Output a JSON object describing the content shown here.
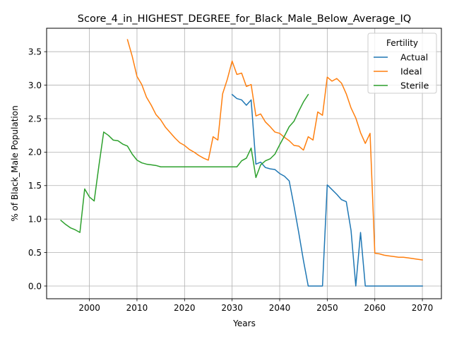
{
  "chart_data": {
    "type": "line",
    "title": "Score_4_in_HIGHEST_DEGREE_for_Black_Male_Below_Average_IQ",
    "xlabel": "Years",
    "ylabel": "% of Black_Male Population",
    "xlim": [
      1991,
      2074
    ],
    "ylim": [
      -0.19,
      3.85
    ],
    "xticks": [
      2000,
      2010,
      2020,
      2030,
      2040,
      2050,
      2060,
      2070
    ],
    "yticks": [
      0.0,
      0.5,
      1.0,
      1.5,
      2.0,
      2.5,
      3.0,
      3.5
    ],
    "xtick_labels": [
      "2000",
      "2010",
      "2020",
      "2030",
      "2040",
      "2050",
      "2060",
      "2070"
    ],
    "ytick_labels": [
      "0.0",
      "0.5",
      "1.0",
      "1.5",
      "2.0",
      "2.5",
      "3.0",
      "3.5"
    ],
    "grid": true,
    "legend": {
      "title": "Fertility",
      "placement": "top-right"
    },
    "series": [
      {
        "name": "Actual",
        "color": "#1f77b4",
        "x": [
          2030,
          2031,
          2032,
          2033,
          2034,
          2035,
          2036,
          2037,
          2038,
          2039,
          2040,
          2041,
          2042,
          2043,
          2044,
          2045,
          2046,
          2047,
          2048,
          2049,
          2050,
          2051,
          2052,
          2053,
          2054,
          2055,
          2056,
          2057,
          2058,
          2059,
          2060,
          2061,
          2062,
          2063,
          2064,
          2065,
          2066,
          2067,
          2068,
          2069,
          2070
        ],
        "y": [
          2.86,
          2.8,
          2.78,
          2.7,
          2.78,
          1.82,
          1.85,
          1.77,
          1.75,
          1.74,
          1.68,
          1.64,
          1.57,
          1.2,
          0.8,
          0.38,
          0.0,
          0.0,
          0.0,
          0.0,
          1.51,
          1.44,
          1.37,
          1.29,
          1.26,
          0.83,
          0.0,
          0.8,
          0.0,
          0.0,
          0.0,
          0.0,
          0.0,
          0.0,
          0.0,
          0.0,
          0.0,
          0.0,
          0.0,
          0.0,
          0.0
        ]
      },
      {
        "name": "Ideal",
        "color": "#ff7f0e",
        "x": [
          2008,
          2009,
          2010,
          2011,
          2012,
          2013,
          2014,
          2015,
          2016,
          2017,
          2018,
          2019,
          2020,
          2021,
          2022,
          2023,
          2024,
          2025,
          2026,
          2027,
          2028,
          2029,
          2030,
          2031,
          2032,
          2033,
          2034,
          2035,
          2036,
          2037,
          2038,
          2039,
          2040,
          2041,
          2042,
          2043,
          2044,
          2045,
          2046,
          2047,
          2048,
          2049,
          2050,
          2051,
          2052,
          2053,
          2054,
          2055,
          2056,
          2057,
          2058,
          2059,
          2060,
          2061,
          2062,
          2063,
          2064,
          2065,
          2066,
          2067,
          2068,
          2069,
          2070
        ],
        "y": [
          3.68,
          3.43,
          3.13,
          3.01,
          2.82,
          2.7,
          2.56,
          2.48,
          2.37,
          2.29,
          2.21,
          2.14,
          2.1,
          2.04,
          2.0,
          1.95,
          1.91,
          1.88,
          2.23,
          2.18,
          2.87,
          3.09,
          3.36,
          3.16,
          3.18,
          2.98,
          3.01,
          2.54,
          2.57,
          2.45,
          2.38,
          2.3,
          2.28,
          2.22,
          2.17,
          2.1,
          2.09,
          2.03,
          2.23,
          2.18,
          2.6,
          2.55,
          3.12,
          3.06,
          3.1,
          3.03,
          2.87,
          2.66,
          2.51,
          2.29,
          2.13,
          2.28,
          0.49,
          0.48,
          0.46,
          0.45,
          0.44,
          0.43,
          0.43,
          0.42,
          0.41,
          0.4,
          0.39
        ]
      },
      {
        "name": "Sterile",
        "color": "#2ca02c",
        "x": [
          1994,
          1995,
          1996,
          1997,
          1998,
          1999,
          2000,
          2001,
          2002,
          2003,
          2004,
          2005,
          2006,
          2007,
          2008,
          2009,
          2010,
          2011,
          2012,
          2013,
          2014,
          2015,
          2016,
          2017,
          2018,
          2019,
          2020,
          2021,
          2022,
          2023,
          2024,
          2025,
          2026,
          2027,
          2028,
          2029,
          2030,
          2031,
          2032,
          2033,
          2034,
          2035,
          2036,
          2037,
          2038,
          2039,
          2040,
          2041,
          2042,
          2043,
          2044,
          2045,
          2046
        ],
        "y": [
          0.98,
          0.92,
          0.87,
          0.84,
          0.8,
          1.45,
          1.33,
          1.27,
          1.8,
          2.3,
          2.25,
          2.18,
          2.17,
          2.12,
          2.09,
          1.97,
          1.88,
          1.84,
          1.82,
          1.81,
          1.8,
          1.78,
          1.78,
          1.78,
          1.78,
          1.78,
          1.78,
          1.78,
          1.78,
          1.78,
          1.78,
          1.78,
          1.78,
          1.78,
          1.78,
          1.78,
          1.78,
          1.78,
          1.87,
          1.91,
          2.06,
          1.62,
          1.81,
          1.87,
          1.9,
          1.97,
          2.11,
          2.24,
          2.38,
          2.46,
          2.61,
          2.75,
          2.86
        ]
      }
    ]
  }
}
